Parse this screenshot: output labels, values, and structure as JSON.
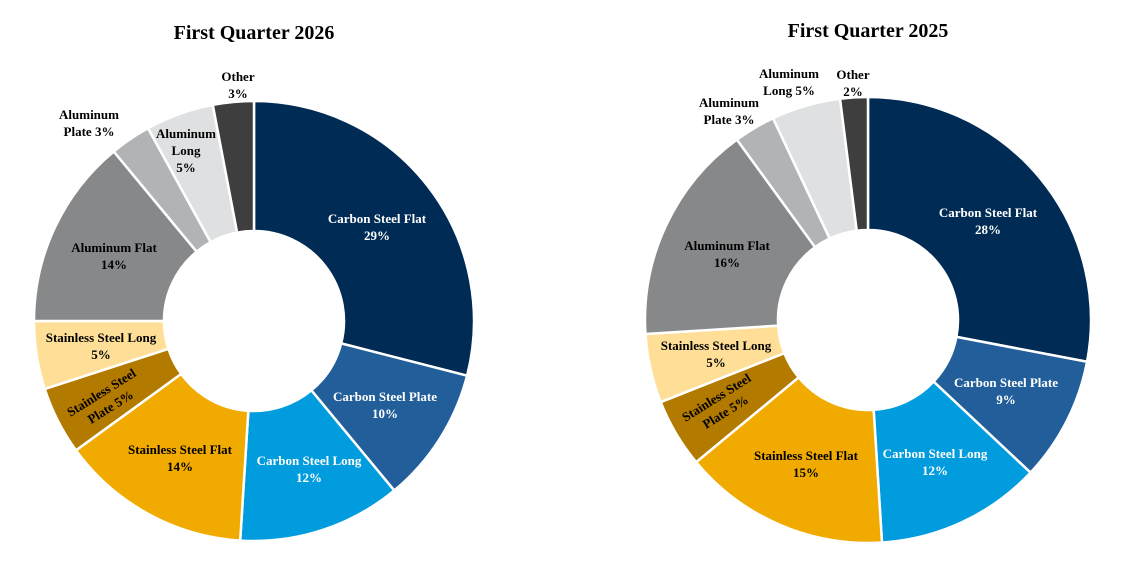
{
  "chart_data": [
    {
      "type": "pie",
      "title": "First Quarter 2026",
      "categories": [
        "Carbon Steel Flat",
        "Carbon Steel Plate",
        "Carbon Steel Long",
        "Stainless Steel Flat",
        "Stainless Steel Plate",
        "Stainless Steel Long",
        "Aluminum Flat",
        "Aluminum Plate",
        "Aluminum Long",
        "Other"
      ],
      "values": [
        29,
        10,
        12,
        14,
        5,
        5,
        14,
        3,
        5,
        3
      ],
      "labels": [
        "29%",
        "10%",
        "12%",
        "14%",
        "5%",
        "5%",
        "14%",
        "3%",
        "5%",
        "3%"
      ]
    },
    {
      "type": "pie",
      "title": "First Quarter 2025",
      "categories": [
        "Carbon Steel Flat",
        "Carbon Steel Plate",
        "Carbon Steel Long",
        "Stainless Steel Flat",
        "Stainless Steel Plate",
        "Stainless Steel Long",
        "Aluminum Flat",
        "Aluminum Plate",
        "Aluminum Long",
        "Other"
      ],
      "values": [
        28,
        9,
        12,
        15,
        5,
        5,
        16,
        3,
        5,
        2
      ],
      "labels": [
        "28%",
        "9%",
        "12%",
        "15%",
        "5%",
        "5%",
        "16%",
        "3%",
        "5%",
        "2%"
      ]
    }
  ],
  "colors": [
    "#002b54",
    "#225e99",
    "#009cde",
    "#f1aa00",
    "#b37a00",
    "#ffdf97",
    "#87888a",
    "#b2b3b5",
    "#dfe0e1",
    "#3f3e3f"
  ]
}
